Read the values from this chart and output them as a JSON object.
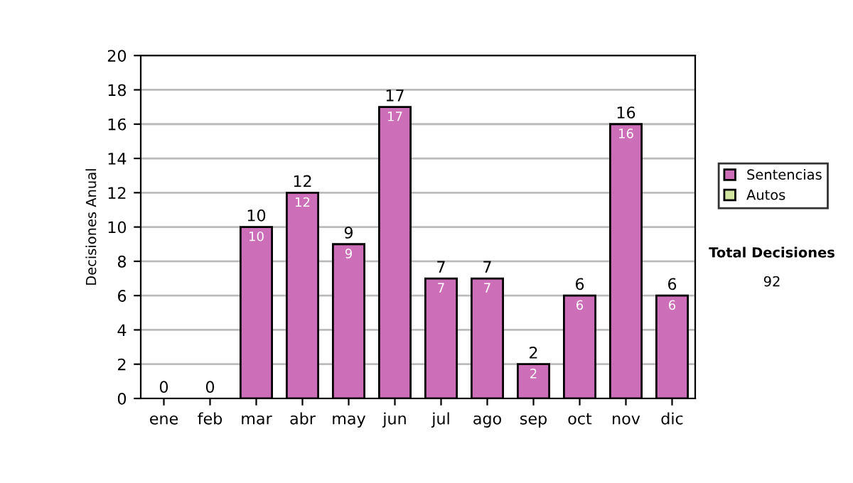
{
  "chart_data": {
    "type": "bar",
    "ylabel": "Decisiones Anual",
    "categories": [
      "ene",
      "feb",
      "mar",
      "abr",
      "may",
      "jun",
      "jul",
      "ago",
      "sep",
      "oct",
      "nov",
      "dic"
    ],
    "series": [
      {
        "name": "Sentencias",
        "color": "#cc6fb8",
        "values": [
          0,
          0,
          10,
          12,
          9,
          17,
          7,
          7,
          2,
          6,
          16,
          6
        ],
        "value_labels": [
          null,
          null,
          "10",
          "12",
          "9",
          "17",
          "7",
          "7",
          "2",
          "6",
          "16",
          "6"
        ]
      },
      {
        "name": "Autos",
        "color": "#d3e6a0",
        "values": [
          0,
          0,
          0,
          0,
          0,
          0,
          0,
          0,
          0,
          0,
          0,
          0
        ]
      }
    ],
    "stacked": true,
    "totals": [
      "0",
      "0",
      "10",
      "12",
      "9",
      "17",
      "7",
      "7",
      "2",
      "6",
      "16",
      "6"
    ],
    "ylim": [
      0,
      20
    ],
    "yticks": [
      0,
      2,
      4,
      6,
      8,
      10,
      12,
      14,
      16,
      18,
      20
    ],
    "grid": "y",
    "legend": "right",
    "annotations": [
      "Total Decisiones",
      "92"
    ]
  }
}
